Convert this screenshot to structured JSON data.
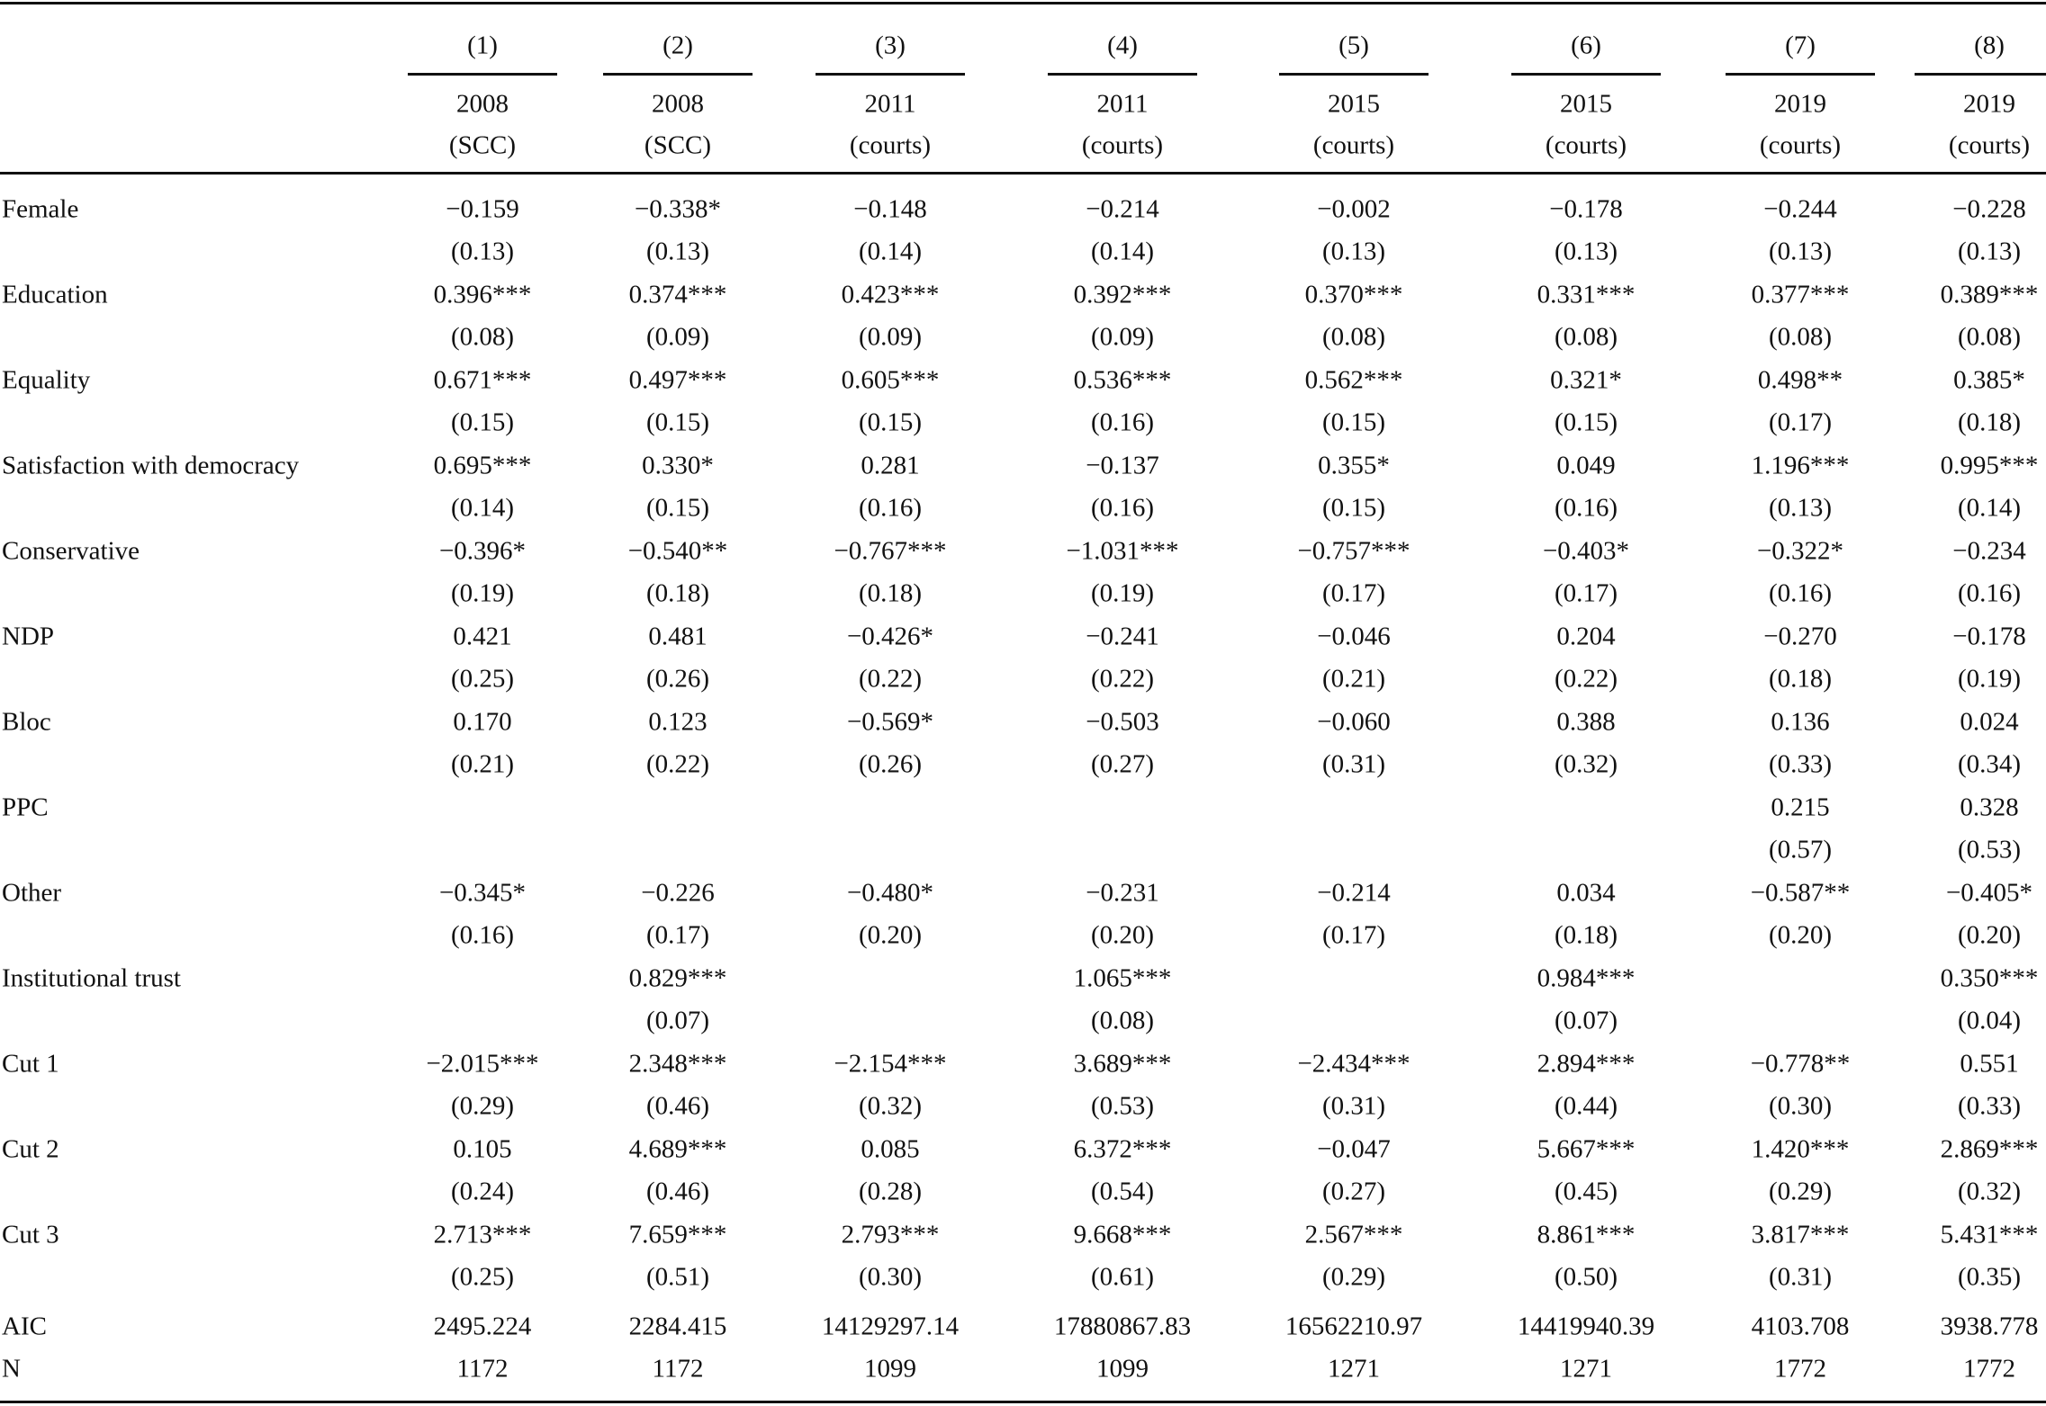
{
  "table": {
    "columns": [
      {
        "number": "(1)",
        "year": "2008",
        "sample": "(SCC)"
      },
      {
        "number": "(2)",
        "year": "2008",
        "sample": "(SCC)"
      },
      {
        "number": "(3)",
        "year": "2011",
        "sample": "(courts)"
      },
      {
        "number": "(4)",
        "year": "2011",
        "sample": "(courts)"
      },
      {
        "number": "(5)",
        "year": "2015",
        "sample": "(courts)"
      },
      {
        "number": "(6)",
        "year": "2015",
        "sample": "(courts)"
      },
      {
        "number": "(7)",
        "year": "2019",
        "sample": "(courts)"
      },
      {
        "number": "(8)",
        "year": "2019",
        "sample": "(courts)"
      }
    ],
    "rows": [
      {
        "label": "Female",
        "estimates": [
          "−0.159",
          "−0.338*",
          "−0.148",
          "−0.214",
          "−0.002",
          "−0.178",
          "−0.244",
          "−0.228"
        ],
        "std_errors": [
          "(0.13)",
          "(0.13)",
          "(0.14)",
          "(0.14)",
          "(0.13)",
          "(0.13)",
          "(0.13)",
          "(0.13)"
        ]
      },
      {
        "label": "Education",
        "estimates": [
          "0.396***",
          "0.374***",
          "0.423***",
          "0.392***",
          "0.370***",
          "0.331***",
          "0.377***",
          "0.389***"
        ],
        "std_errors": [
          "(0.08)",
          "(0.09)",
          "(0.09)",
          "(0.09)",
          "(0.08)",
          "(0.08)",
          "(0.08)",
          "(0.08)"
        ]
      },
      {
        "label": "Equality",
        "estimates": [
          "0.671***",
          "0.497***",
          "0.605***",
          "0.536***",
          "0.562***",
          "0.321*",
          "0.498**",
          "0.385*"
        ],
        "std_errors": [
          "(0.15)",
          "(0.15)",
          "(0.15)",
          "(0.16)",
          "(0.15)",
          "(0.15)",
          "(0.17)",
          "(0.18)"
        ]
      },
      {
        "label": "Satisfaction with democracy",
        "estimates": [
          "0.695***",
          "0.330*",
          "0.281",
          "−0.137",
          "0.355*",
          "0.049",
          "1.196***",
          "0.995***"
        ],
        "std_errors": [
          "(0.14)",
          "(0.15)",
          "(0.16)",
          "(0.16)",
          "(0.15)",
          "(0.16)",
          "(0.13)",
          "(0.14)"
        ]
      },
      {
        "label": "Conservative",
        "estimates": [
          "−0.396*",
          "−0.540**",
          "−0.767***",
          "−1.031***",
          "−0.757***",
          "−0.403*",
          "−0.322*",
          "−0.234"
        ],
        "std_errors": [
          "(0.19)",
          "(0.18)",
          "(0.18)",
          "(0.19)",
          "(0.17)",
          "(0.17)",
          "(0.16)",
          "(0.16)"
        ]
      },
      {
        "label": "NDP",
        "estimates": [
          "0.421",
          "0.481",
          "−0.426*",
          "−0.241",
          "−0.046",
          "0.204",
          "−0.270",
          "−0.178"
        ],
        "std_errors": [
          "(0.25)",
          "(0.26)",
          "(0.22)",
          "(0.22)",
          "(0.21)",
          "(0.22)",
          "(0.18)",
          "(0.19)"
        ]
      },
      {
        "label": "Bloc",
        "estimates": [
          "0.170",
          "0.123",
          "−0.569*",
          "−0.503",
          "−0.060",
          "0.388",
          "0.136",
          "0.024"
        ],
        "std_errors": [
          "(0.21)",
          "(0.22)",
          "(0.26)",
          "(0.27)",
          "(0.31)",
          "(0.32)",
          "(0.33)",
          "(0.34)"
        ]
      },
      {
        "label": "PPC",
        "estimates": [
          null,
          null,
          null,
          null,
          null,
          null,
          "0.215",
          "0.328"
        ],
        "std_errors": [
          null,
          null,
          null,
          null,
          null,
          null,
          "(0.57)",
          "(0.53)"
        ]
      },
      {
        "label": "Other",
        "estimates": [
          "−0.345*",
          "−0.226",
          "−0.480*",
          "−0.231",
          "−0.214",
          "0.034",
          "−0.587**",
          "−0.405*"
        ],
        "std_errors": [
          "(0.16)",
          "(0.17)",
          "(0.20)",
          "(0.20)",
          "(0.17)",
          "(0.18)",
          "(0.20)",
          "(0.20)"
        ]
      },
      {
        "label": "Institutional trust",
        "estimates": [
          null,
          "0.829***",
          null,
          "1.065***",
          null,
          "0.984***",
          null,
          "0.350***"
        ],
        "std_errors": [
          null,
          "(0.07)",
          null,
          "(0.08)",
          null,
          "(0.07)",
          null,
          "(0.04)"
        ]
      },
      {
        "label": "Cut 1",
        "estimates": [
          "−2.015***",
          "2.348***",
          "−2.154***",
          "3.689***",
          "−2.434***",
          "2.894***",
          "−0.778**",
          "0.551"
        ],
        "std_errors": [
          "(0.29)",
          "(0.46)",
          "(0.32)",
          "(0.53)",
          "(0.31)",
          "(0.44)",
          "(0.30)",
          "(0.33)"
        ]
      },
      {
        "label": "Cut 2",
        "estimates": [
          "0.105",
          "4.689***",
          "0.085",
          "6.372***",
          "−0.047",
          "5.667***",
          "1.420***",
          "2.869***"
        ],
        "std_errors": [
          "(0.24)",
          "(0.46)",
          "(0.28)",
          "(0.54)",
          "(0.27)",
          "(0.45)",
          "(0.29)",
          "(0.32)"
        ]
      },
      {
        "label": "Cut 3",
        "estimates": [
          "2.713***",
          "7.659***",
          "2.793***",
          "9.668***",
          "2.567***",
          "8.861***",
          "3.817***",
          "5.431***"
        ],
        "std_errors": [
          "(0.25)",
          "(0.51)",
          "(0.30)",
          "(0.61)",
          "(0.29)",
          "(0.50)",
          "(0.31)",
          "(0.35)"
        ]
      }
    ],
    "stats": [
      {
        "label": "AIC",
        "values": [
          "2495.224",
          "2284.415",
          "14129297.14",
          "17880867.83",
          "16562210.97",
          "14419940.39",
          "4103.708",
          "3938.778"
        ]
      },
      {
        "label": "N",
        "values": [
          "1172",
          "1172",
          "1099",
          "1099",
          "1271",
          "1271",
          "1772",
          "1772"
        ]
      }
    ]
  }
}
